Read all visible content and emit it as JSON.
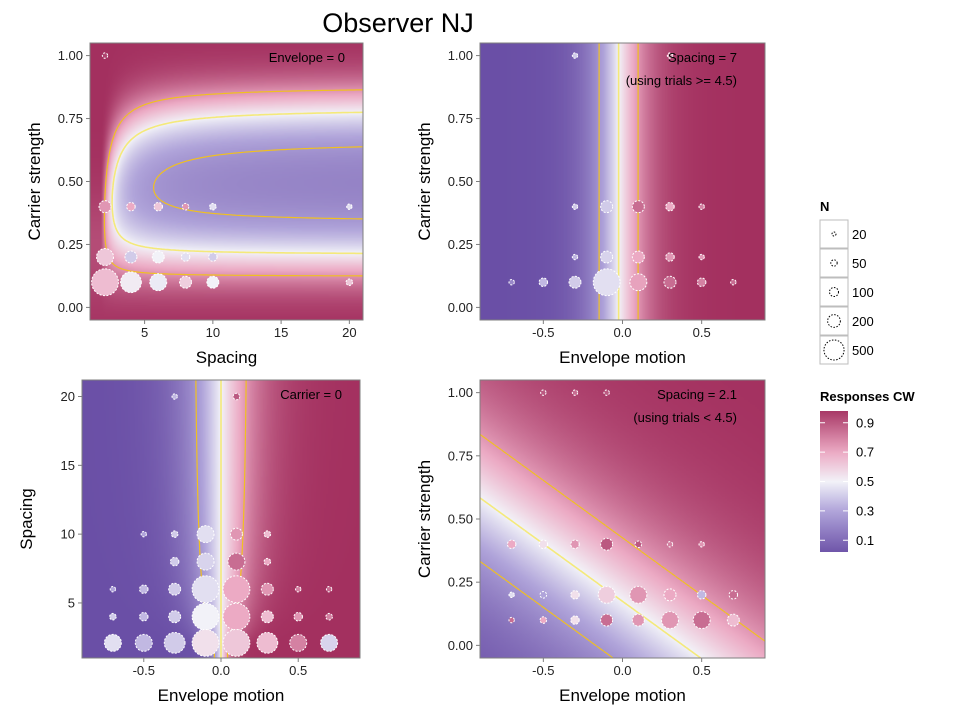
{
  "title": "Observer NJ",
  "colors": {
    "low": "#6a4fa6",
    "mid": "#f2f2f8",
    "high": "#a3305f",
    "contour_major": "#f4e97a",
    "contour_minor": "#f0c020",
    "point_stroke": "#ffffff"
  },
  "legend_n": {
    "title": "N",
    "labels": [
      "20",
      "50",
      "100",
      "200",
      "500"
    ],
    "values": [
      20,
      50,
      100,
      200,
      500
    ]
  },
  "legend_color": {
    "title": "Responses CW",
    "labels": [
      "0.9",
      "0.7",
      "0.5",
      "0.3",
      "0.1"
    ],
    "values": [
      0.9,
      0.7,
      0.5,
      0.3,
      0.1
    ]
  },
  "chart_data": [
    {
      "type": "heatmap",
      "panel": "top-left",
      "annotation": [
        "Envelope = 0"
      ],
      "xlabel": "Spacing",
      "ylabel": "Carrier strength",
      "xlim": [
        1,
        21
      ],
      "ylim": [
        -0.05,
        1.05
      ],
      "xticks": [
        5,
        10,
        15,
        20
      ],
      "xtick_labels": [
        "5",
        "10",
        "15",
        "20"
      ],
      "yticks": [
        0,
        0.25,
        0.5,
        0.75,
        1
      ],
      "ytick_labels": [
        "0.00",
        "0.25",
        "0.50",
        "0.75",
        "1.00"
      ],
      "points": [
        {
          "x": 2.1,
          "y": 1.0,
          "n": 20,
          "p": 0.95
        },
        {
          "x": 2.1,
          "y": 0.4,
          "n": 100,
          "p": 0.75
        },
        {
          "x": 4,
          "y": 0.4,
          "n": 50,
          "p": 0.7
        },
        {
          "x": 6,
          "y": 0.4,
          "n": 50,
          "p": 0.62
        },
        {
          "x": 8,
          "y": 0.4,
          "n": 30,
          "p": 0.75
        },
        {
          "x": 10,
          "y": 0.4,
          "n": 30,
          "p": 0.45
        },
        {
          "x": 20,
          "y": 0.4,
          "n": 20,
          "p": 0.45
        },
        {
          "x": 2.1,
          "y": 0.2,
          "n": 200,
          "p": 0.62
        },
        {
          "x": 4,
          "y": 0.2,
          "n": 100,
          "p": 0.4
        },
        {
          "x": 6,
          "y": 0.2,
          "n": 100,
          "p": 0.5
        },
        {
          "x": 8,
          "y": 0.2,
          "n": 50,
          "p": 0.45
        },
        {
          "x": 10,
          "y": 0.2,
          "n": 50,
          "p": 0.4
        },
        {
          "x": 2.1,
          "y": 0.1,
          "n": 500,
          "p": 0.65
        },
        {
          "x": 4,
          "y": 0.1,
          "n": 300,
          "p": 0.52
        },
        {
          "x": 6,
          "y": 0.1,
          "n": 200,
          "p": 0.48
        },
        {
          "x": 8,
          "y": 0.1,
          "n": 100,
          "p": 0.6
        },
        {
          "x": 10,
          "y": 0.1,
          "n": 100,
          "p": 0.5
        },
        {
          "x": 20,
          "y": 0.1,
          "n": 30,
          "p": 0.62
        }
      ]
    },
    {
      "type": "heatmap",
      "panel": "top-right",
      "annotation": [
        "Spacing = 7",
        "(using trials >= 4.5)"
      ],
      "xlabel": "Envelope motion",
      "ylabel": "Carrier strength",
      "xlim": [
        -0.9,
        0.9
      ],
      "ylim": [
        -0.05,
        1.05
      ],
      "xticks": [
        -0.5,
        0,
        0.5
      ],
      "xtick_labels": [
        "-0.5",
        "0.0",
        "0.5"
      ],
      "yticks": [
        0,
        0.25,
        0.5,
        0.75,
        1
      ],
      "ytick_labels": [
        "0.00",
        "0.25",
        "0.50",
        "0.75",
        "1.00"
      ],
      "points": [
        {
          "x": -0.3,
          "y": 1.0,
          "n": 20,
          "p": 0.4
        },
        {
          "x": 0.3,
          "y": 1.0,
          "n": 20,
          "p": 0.7
        },
        {
          "x": -0.3,
          "y": 0.4,
          "n": 20,
          "p": 0.4
        },
        {
          "x": -0.1,
          "y": 0.4,
          "n": 100,
          "p": 0.4
        },
        {
          "x": 0.1,
          "y": 0.4,
          "n": 100,
          "p": 0.85
        },
        {
          "x": 0.3,
          "y": 0.4,
          "n": 50,
          "p": 0.7
        },
        {
          "x": 0.5,
          "y": 0.4,
          "n": 20,
          "p": 0.8
        },
        {
          "x": -0.3,
          "y": 0.2,
          "n": 20,
          "p": 0.35
        },
        {
          "x": -0.1,
          "y": 0.2,
          "n": 100,
          "p": 0.42
        },
        {
          "x": 0.1,
          "y": 0.2,
          "n": 100,
          "p": 0.7
        },
        {
          "x": 0.3,
          "y": 0.2,
          "n": 50,
          "p": 0.75
        },
        {
          "x": 0.5,
          "y": 0.2,
          "n": 20,
          "p": 0.75
        },
        {
          "x": -0.7,
          "y": 0.1,
          "n": 20,
          "p": 0.2
        },
        {
          "x": -0.5,
          "y": 0.1,
          "n": 50,
          "p": 0.35
        },
        {
          "x": -0.3,
          "y": 0.1,
          "n": 100,
          "p": 0.4
        },
        {
          "x": -0.1,
          "y": 0.1,
          "n": 500,
          "p": 0.45
        },
        {
          "x": 0.1,
          "y": 0.1,
          "n": 200,
          "p": 0.72
        },
        {
          "x": 0.3,
          "y": 0.1,
          "n": 100,
          "p": 0.85
        },
        {
          "x": 0.5,
          "y": 0.1,
          "n": 50,
          "p": 0.8
        },
        {
          "x": 0.7,
          "y": 0.1,
          "n": 20,
          "p": 0.85
        }
      ]
    },
    {
      "type": "heatmap",
      "panel": "bottom-left",
      "annotation": [
        "Carrier = 0"
      ],
      "xlabel": "Envelope motion",
      "ylabel": "Spacing",
      "xlim": [
        -0.9,
        0.9
      ],
      "ylim": [
        1,
        21.2
      ],
      "xticks": [
        -0.5,
        0,
        0.5
      ],
      "xtick_labels": [
        "-0.5",
        "0.0",
        "0.5"
      ],
      "yticks": [
        5,
        10,
        15,
        20
      ],
      "ytick_labels": [
        "5",
        "10",
        "15",
        "20"
      ],
      "points": [
        {
          "x": -0.3,
          "y": 20,
          "n": 20,
          "p": 0.35
        },
        {
          "x": 0.1,
          "y": 20,
          "n": 30,
          "p": 0.9
        },
        {
          "x": -0.5,
          "y": 10,
          "n": 20,
          "p": 0.3
        },
        {
          "x": -0.3,
          "y": 10,
          "n": 30,
          "p": 0.4
        },
        {
          "x": -0.1,
          "y": 10,
          "n": 200,
          "p": 0.45
        },
        {
          "x": 0.1,
          "y": 10,
          "n": 100,
          "p": 0.75
        },
        {
          "x": 0.3,
          "y": 10,
          "n": 30,
          "p": 0.65
        },
        {
          "x": -0.3,
          "y": 8,
          "n": 50,
          "p": 0.4
        },
        {
          "x": -0.1,
          "y": 8,
          "n": 200,
          "p": 0.42
        },
        {
          "x": 0.1,
          "y": 8,
          "n": 200,
          "p": 0.85
        },
        {
          "x": 0.3,
          "y": 8,
          "n": 30,
          "p": 0.7
        },
        {
          "x": -0.7,
          "y": 6,
          "n": 20,
          "p": 0.3
        },
        {
          "x": -0.5,
          "y": 6,
          "n": 50,
          "p": 0.35
        },
        {
          "x": -0.3,
          "y": 6,
          "n": 100,
          "p": 0.4
        },
        {
          "x": -0.1,
          "y": 6,
          "n": 500,
          "p": 0.45
        },
        {
          "x": 0.1,
          "y": 6,
          "n": 500,
          "p": 0.7
        },
        {
          "x": 0.3,
          "y": 6,
          "n": 100,
          "p": 0.75
        },
        {
          "x": 0.5,
          "y": 6,
          "n": 20,
          "p": 0.8
        },
        {
          "x": 0.7,
          "y": 6,
          "n": 20,
          "p": 0.85
        },
        {
          "x": -0.7,
          "y": 4,
          "n": 30,
          "p": 0.4
        },
        {
          "x": -0.5,
          "y": 4,
          "n": 50,
          "p": 0.35
        },
        {
          "x": -0.3,
          "y": 4,
          "n": 100,
          "p": 0.4
        },
        {
          "x": -0.1,
          "y": 4,
          "n": 500,
          "p": 0.5
        },
        {
          "x": 0.1,
          "y": 4,
          "n": 500,
          "p": 0.7
        },
        {
          "x": 0.3,
          "y": 4,
          "n": 100,
          "p": 0.65
        },
        {
          "x": 0.5,
          "y": 4,
          "n": 50,
          "p": 0.75
        },
        {
          "x": 0.7,
          "y": 4,
          "n": 30,
          "p": 0.8
        },
        {
          "x": -0.7,
          "y": 2.1,
          "n": 200,
          "p": 0.45
        },
        {
          "x": -0.5,
          "y": 2.1,
          "n": 200,
          "p": 0.35
        },
        {
          "x": -0.3,
          "y": 2.1,
          "n": 300,
          "p": 0.4
        },
        {
          "x": -0.1,
          "y": 2.1,
          "n": 500,
          "p": 0.55
        },
        {
          "x": 0.1,
          "y": 2.1,
          "n": 500,
          "p": 0.62
        },
        {
          "x": 0.3,
          "y": 2.1,
          "n": 300,
          "p": 0.65
        },
        {
          "x": 0.5,
          "y": 2.1,
          "n": 200,
          "p": 0.8
        },
        {
          "x": 0.7,
          "y": 2.1,
          "n": 200,
          "p": 0.42
        }
      ]
    },
    {
      "type": "heatmap",
      "panel": "bottom-right",
      "annotation": [
        "Spacing = 2.1",
        "(using trials < 4.5)"
      ],
      "xlabel": "Envelope motion",
      "ylabel": "Carrier strength",
      "xlim": [
        -0.9,
        0.9
      ],
      "ylim": [
        -0.05,
        1.05
      ],
      "xticks": [
        -0.5,
        0,
        0.5
      ],
      "xtick_labels": [
        "-0.5",
        "0.0",
        "0.5"
      ],
      "yticks": [
        0,
        0.25,
        0.5,
        0.75,
        1
      ],
      "ytick_labels": [
        "0.00",
        "0.25",
        "0.50",
        "0.75",
        "1.00"
      ],
      "points": [
        {
          "x": -0.5,
          "y": 1.0,
          "n": 20,
          "p": 0.9
        },
        {
          "x": -0.3,
          "y": 1.0,
          "n": 20,
          "p": 0.85
        },
        {
          "x": -0.1,
          "y": 1.0,
          "n": 20,
          "p": 0.9
        },
        {
          "x": -0.7,
          "y": 0.4,
          "n": 50,
          "p": 0.7
        },
        {
          "x": -0.5,
          "y": 0.4,
          "n": 50,
          "p": 0.55
        },
        {
          "x": -0.3,
          "y": 0.4,
          "n": 50,
          "p": 0.75
        },
        {
          "x": -0.1,
          "y": 0.4,
          "n": 100,
          "p": 0.9
        },
        {
          "x": 0.1,
          "y": 0.4,
          "n": 30,
          "p": 0.9
        },
        {
          "x": 0.3,
          "y": 0.4,
          "n": 20,
          "p": 0.8
        },
        {
          "x": 0.5,
          "y": 0.4,
          "n": 20,
          "p": 0.75
        },
        {
          "x": -0.7,
          "y": 0.2,
          "n": 20,
          "p": 0.45
        },
        {
          "x": -0.5,
          "y": 0.2,
          "n": 30,
          "p": 0.3
        },
        {
          "x": -0.3,
          "y": 0.2,
          "n": 50,
          "p": 0.55
        },
        {
          "x": -0.1,
          "y": 0.2,
          "n": 200,
          "p": 0.6
        },
        {
          "x": 0.1,
          "y": 0.2,
          "n": 200,
          "p": 0.75
        },
        {
          "x": 0.3,
          "y": 0.2,
          "n": 100,
          "p": 0.7
        },
        {
          "x": 0.5,
          "y": 0.2,
          "n": 50,
          "p": 0.35
        },
        {
          "x": 0.7,
          "y": 0.2,
          "n": 50,
          "p": 0.85
        },
        {
          "x": -0.7,
          "y": 0.1,
          "n": 20,
          "p": 0.85
        },
        {
          "x": -0.5,
          "y": 0.1,
          "n": 30,
          "p": 0.7
        },
        {
          "x": -0.3,
          "y": 0.1,
          "n": 50,
          "p": 0.55
        },
        {
          "x": -0.1,
          "y": 0.1,
          "n": 100,
          "p": 0.85
        },
        {
          "x": 0.1,
          "y": 0.1,
          "n": 100,
          "p": 0.75
        },
        {
          "x": 0.3,
          "y": 0.1,
          "n": 200,
          "p": 0.75
        },
        {
          "x": 0.5,
          "y": 0.1,
          "n": 200,
          "p": 0.85
        },
        {
          "x": 0.7,
          "y": 0.1,
          "n": 100,
          "p": 0.65
        }
      ]
    }
  ]
}
